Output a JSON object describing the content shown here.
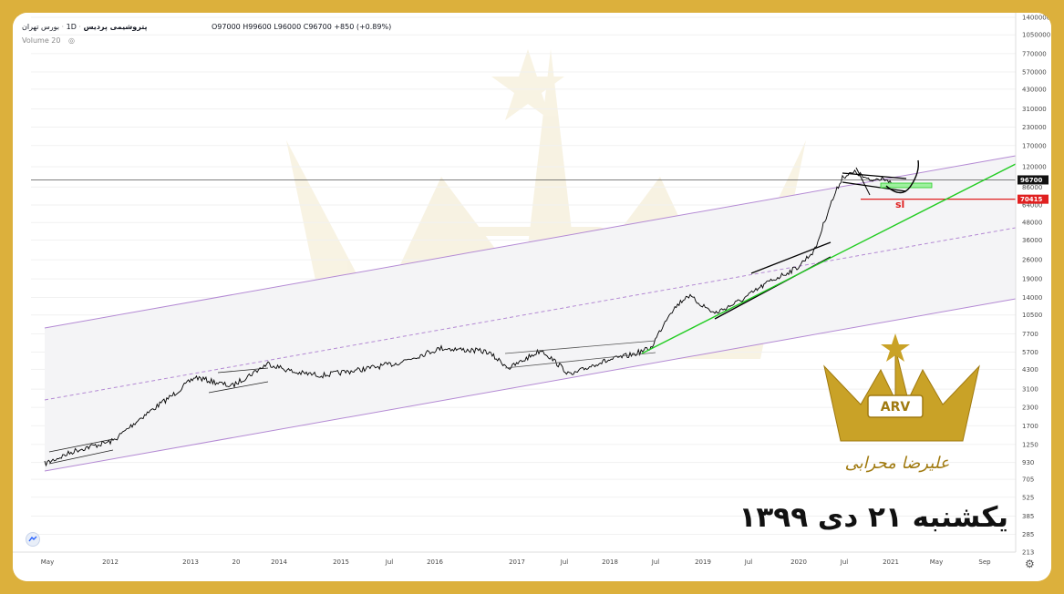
{
  "header": {
    "symbol": "پتروشیمی پردیس",
    "interval": "1D",
    "exchange": "بورس تهران",
    "ohlc": "O97000 H99600 L96000 C96700 +850 (+0.89%)",
    "volume_label": "Volume 20"
  },
  "overlay": {
    "date_text": "یکشنبه ۲۱ دی ۱۳۹۹",
    "sl_label": "sl",
    "logo_text": "ARV",
    "signature": "علیرضا محرابی"
  },
  "colors": {
    "frame": "#dcb03c",
    "channel": "#b48ad4",
    "trend": "#22cc22",
    "stop": "#e02020",
    "price": "#000000",
    "gold": "#c9a227"
  },
  "chart_data": {
    "type": "line",
    "scale": "log",
    "y_ticks": [
      213,
      285,
      385,
      525,
      705,
      930,
      1250,
      1700,
      2300,
      3100,
      4300,
      5700,
      7700,
      10500,
      14000,
      19000,
      26000,
      36000,
      48000,
      64000,
      86000,
      120000,
      170000,
      230000,
      310000,
      430000,
      570000,
      770000,
      1050000,
      1400000
    ],
    "x_ticks": [
      "May",
      "2012",
      "2013",
      "20",
      "2014",
      "2015",
      "Jul",
      "2016",
      "2017",
      "Jul",
      "2018",
      "Jul",
      "2019",
      "Jul",
      "2020",
      "Jul",
      "2021",
      "May",
      "Sep"
    ],
    "last_price": 96700,
    "stop_loss": 70415,
    "series": [
      {
        "values": [
          [
            "May",
            800
          ],
          [
            "2012",
            1300
          ],
          [
            "2013",
            2500
          ],
          [
            "2013-H2",
            3300
          ],
          [
            "2014",
            5000
          ],
          [
            "2015",
            4200
          ],
          [
            "Jul",
            4800
          ],
          [
            "2016",
            5800
          ],
          [
            "2017",
            5000
          ],
          [
            "Jul",
            4100
          ],
          [
            "2018",
            5500
          ],
          [
            "Jul",
            5800
          ],
          [
            "2019",
            13000
          ],
          [
            "Jul",
            19000
          ],
          [
            "2020",
            28000
          ],
          [
            "Jul",
            110000
          ],
          [
            "2021",
            96700
          ]
        ]
      }
    ]
  }
}
